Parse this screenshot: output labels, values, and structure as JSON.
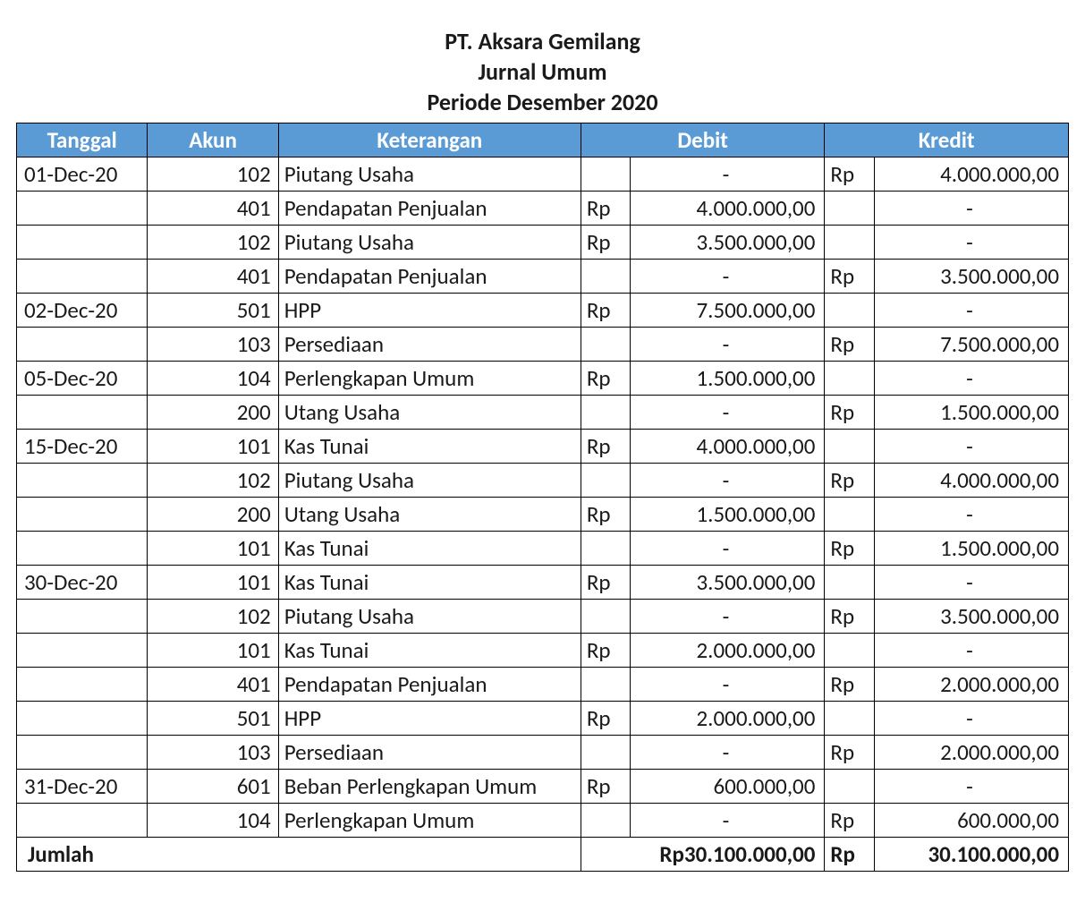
{
  "header": {
    "company": "PT. Aksara Gemilang",
    "report": "Jurnal Umum",
    "period": "Periode Desember 2020"
  },
  "table": {
    "header_bg": "#5b9bd5",
    "header_fg": "#ffffff",
    "border_color": "#000000",
    "columns": {
      "tanggal": "Tanggal",
      "akun": "Akun",
      "keterangan": "Keterangan",
      "debit": "Debit",
      "kredit": "Kredit"
    },
    "currency_symbol": "Rp",
    "dash": "-",
    "rows": [
      {
        "tanggal": "01-Dec-20",
        "akun": "102",
        "ket": "Piutang Usaha",
        "debit_cur": "",
        "debit": "-",
        "kredit_cur": "Rp",
        "kredit": "4.000.000,00"
      },
      {
        "tanggal": "",
        "akun": "401",
        "ket": "Pendapatan Penjualan",
        "debit_cur": "Rp",
        "debit": "4.000.000,00",
        "kredit_cur": "",
        "kredit": "-"
      },
      {
        "tanggal": "",
        "akun": "102",
        "ket": "Piutang Usaha",
        "debit_cur": "Rp",
        "debit": "3.500.000,00",
        "kredit_cur": "",
        "kredit": "-"
      },
      {
        "tanggal": "",
        "akun": "401",
        "ket": "Pendapatan Penjualan",
        "debit_cur": "",
        "debit": "-",
        "kredit_cur": "Rp",
        "kredit": "3.500.000,00"
      },
      {
        "tanggal": "02-Dec-20",
        "akun": "501",
        "ket": "HPP",
        "debit_cur": "Rp",
        "debit": "7.500.000,00",
        "kredit_cur": "",
        "kredit": "-"
      },
      {
        "tanggal": "",
        "akun": "103",
        "ket": "Persediaan",
        "debit_cur": "",
        "debit": "-",
        "kredit_cur": "Rp",
        "kredit": "7.500.000,00"
      },
      {
        "tanggal": "05-Dec-20",
        "akun": "104",
        "ket": "Perlengkapan Umum",
        "debit_cur": "Rp",
        "debit": "1.500.000,00",
        "kredit_cur": "",
        "kredit": "-"
      },
      {
        "tanggal": "",
        "akun": "200",
        "ket": "Utang Usaha",
        "debit_cur": "",
        "debit": "-",
        "kredit_cur": "Rp",
        "kredit": "1.500.000,00"
      },
      {
        "tanggal": "15-Dec-20",
        "akun": "101",
        "ket": "Kas Tunai",
        "debit_cur": "Rp",
        "debit": "4.000.000,00",
        "kredit_cur": "",
        "kredit": "-"
      },
      {
        "tanggal": "",
        "akun": "102",
        "ket": "Piutang Usaha",
        "debit_cur": "",
        "debit": "-",
        "kredit_cur": "Rp",
        "kredit": "4.000.000,00"
      },
      {
        "tanggal": "",
        "akun": "200",
        "ket": "Utang Usaha",
        "debit_cur": "Rp",
        "debit": "1.500.000,00",
        "kredit_cur": "",
        "kredit": "-"
      },
      {
        "tanggal": "",
        "akun": "101",
        "ket": "Kas Tunai",
        "debit_cur": "",
        "debit": "-",
        "kredit_cur": "Rp",
        "kredit": "1.500.000,00"
      },
      {
        "tanggal": "30-Dec-20",
        "akun": "101",
        "ket": "Kas Tunai",
        "debit_cur": "Rp",
        "debit": "3.500.000,00",
        "kredit_cur": "",
        "kredit": "-"
      },
      {
        "tanggal": "",
        "akun": "102",
        "ket": "Piutang Usaha",
        "debit_cur": "",
        "debit": "-",
        "kredit_cur": "Rp",
        "kredit": "3.500.000,00"
      },
      {
        "tanggal": "",
        "akun": "101",
        "ket": "Kas Tunai",
        "debit_cur": "Rp",
        "debit": "2.000.000,00",
        "kredit_cur": "",
        "kredit": "-"
      },
      {
        "tanggal": "",
        "akun": "401",
        "ket": "Pendapatan Penjualan",
        "debit_cur": "",
        "debit": "-",
        "kredit_cur": "Rp",
        "kredit": "2.000.000,00"
      },
      {
        "tanggal": "",
        "akun": "501",
        "ket": "HPP",
        "debit_cur": "Rp",
        "debit": "2.000.000,00",
        "kredit_cur": "",
        "kredit": "-"
      },
      {
        "tanggal": "",
        "akun": "103",
        "ket": "Persediaan",
        "debit_cur": "",
        "debit": "-",
        "kredit_cur": "Rp",
        "kredit": "2.000.000,00"
      },
      {
        "tanggal": "31-Dec-20",
        "akun": "601",
        "ket": "Beban Perlengkapan Umum",
        "debit_cur": "Rp",
        "debit": "600.000,00",
        "kredit_cur": "",
        "kredit": "-"
      },
      {
        "tanggal": "",
        "akun": "104",
        "ket": "Perlengkapan Umum",
        "debit_cur": "",
        "debit": "-",
        "kredit_cur": "Rp",
        "kredit": "600.000,00"
      }
    ],
    "total": {
      "label": "Jumlah",
      "debit_combined": "Rp30.100.000,00",
      "kredit_cur": "Rp",
      "kredit": "30.100.000,00"
    }
  }
}
